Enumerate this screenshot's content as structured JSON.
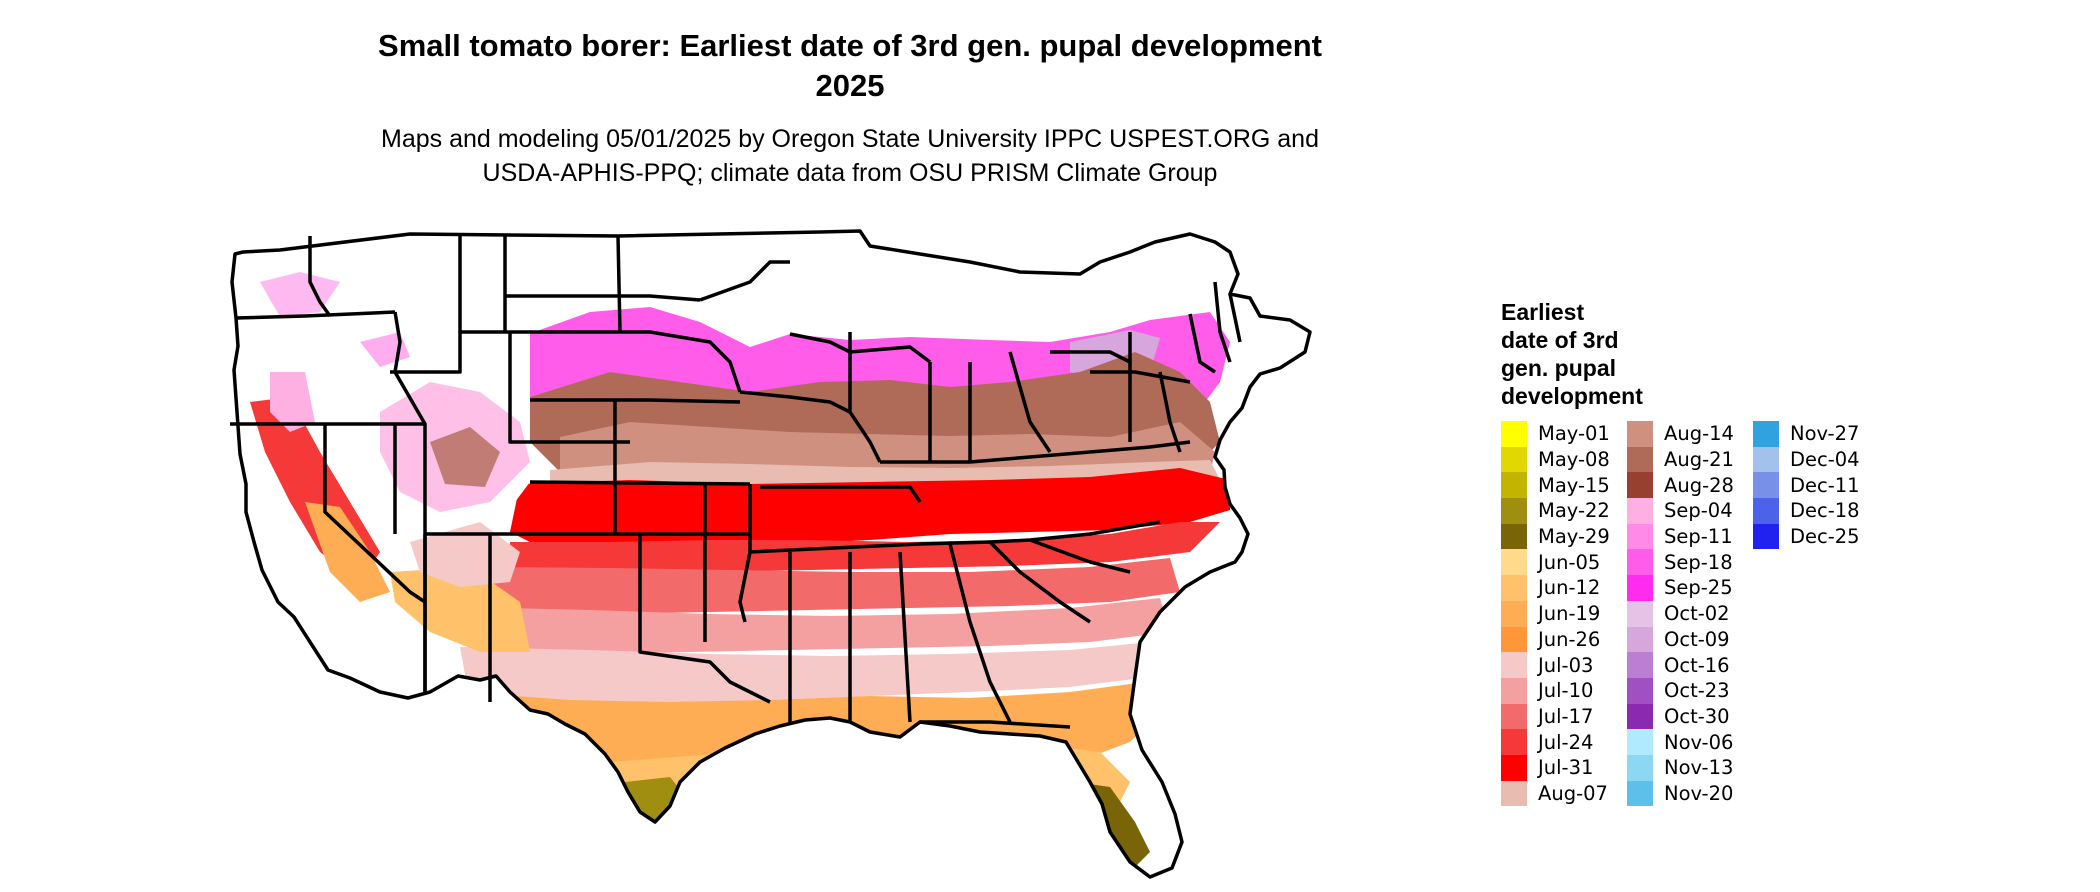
{
  "title": {
    "line1": "Small tomato borer: Earliest date of 3rd gen. pupal development",
    "line2": "2025"
  },
  "subtitle": {
    "line1": "Maps and modeling 05/01/2025 by Oregon State University IPPC USPEST.ORG and",
    "line2": "USDA-APHIS-PPQ; climate data from OSU PRISM Climate Group"
  },
  "legend": {
    "title_lines": [
      "Earliest",
      "date of 3rd",
      "gen. pupal",
      "development"
    ],
    "columns": [
      [
        {
          "label": "May-01",
          "color": "#ffff00"
        },
        {
          "label": "May-08",
          "color": "#e0d800"
        },
        {
          "label": "May-15",
          "color": "#c2b400"
        },
        {
          "label": "May-22",
          "color": "#a08e10"
        },
        {
          "label": "May-29",
          "color": "#7a6408"
        },
        {
          "label": "Jun-05",
          "color": "#ffd98c"
        },
        {
          "label": "Jun-12",
          "color": "#ffc26a"
        },
        {
          "label": "Jun-19",
          "color": "#ffad55"
        },
        {
          "label": "Jun-26",
          "color": "#ff9638"
        },
        {
          "label": "Jul-03",
          "color": "#f4c9c8"
        },
        {
          "label": "Jul-10",
          "color": "#f4a0a0"
        },
        {
          "label": "Jul-17",
          "color": "#f26a6a"
        },
        {
          "label": "Jul-24",
          "color": "#f53838"
        },
        {
          "label": "Jul-31",
          "color": "#fe0000"
        },
        {
          "label": "Aug-07",
          "color": "#e8bcb0"
        }
      ],
      [
        {
          "label": "Aug-14",
          "color": "#cf9080"
        },
        {
          "label": "Aug-21",
          "color": "#b06a58"
        },
        {
          "label": "Aug-28",
          "color": "#984030"
        },
        {
          "label": "Sep-04",
          "color": "#ffb0e2"
        },
        {
          "label": "Sep-11",
          "color": "#ff8ae8"
        },
        {
          "label": "Sep-18",
          "color": "#ff5cea"
        },
        {
          "label": "Sep-25",
          "color": "#ff2cf0"
        },
        {
          "label": "Oct-02",
          "color": "#e6c2e6"
        },
        {
          "label": "Oct-09",
          "color": "#d6a6dc"
        },
        {
          "label": "Oct-16",
          "color": "#bc7ed2"
        },
        {
          "label": "Oct-23",
          "color": "#a050c0"
        },
        {
          "label": "Oct-30",
          "color": "#8a2ab0"
        },
        {
          "label": "Nov-06",
          "color": "#b0eaff"
        },
        {
          "label": "Nov-13",
          "color": "#8cd8f4"
        },
        {
          "label": "Nov-20",
          "color": "#5cc0ea"
        }
      ],
      [
        {
          "label": "Nov-27",
          "color": "#30a2de"
        },
        {
          "label": "Dec-04",
          "color": "#a2c2ec"
        },
        {
          "label": "Dec-11",
          "color": "#7890e8"
        },
        {
          "label": "Dec-18",
          "color": "#4c62ea"
        },
        {
          "label": "Dec-25",
          "color": "#2222ee"
        }
      ]
    ]
  }
}
